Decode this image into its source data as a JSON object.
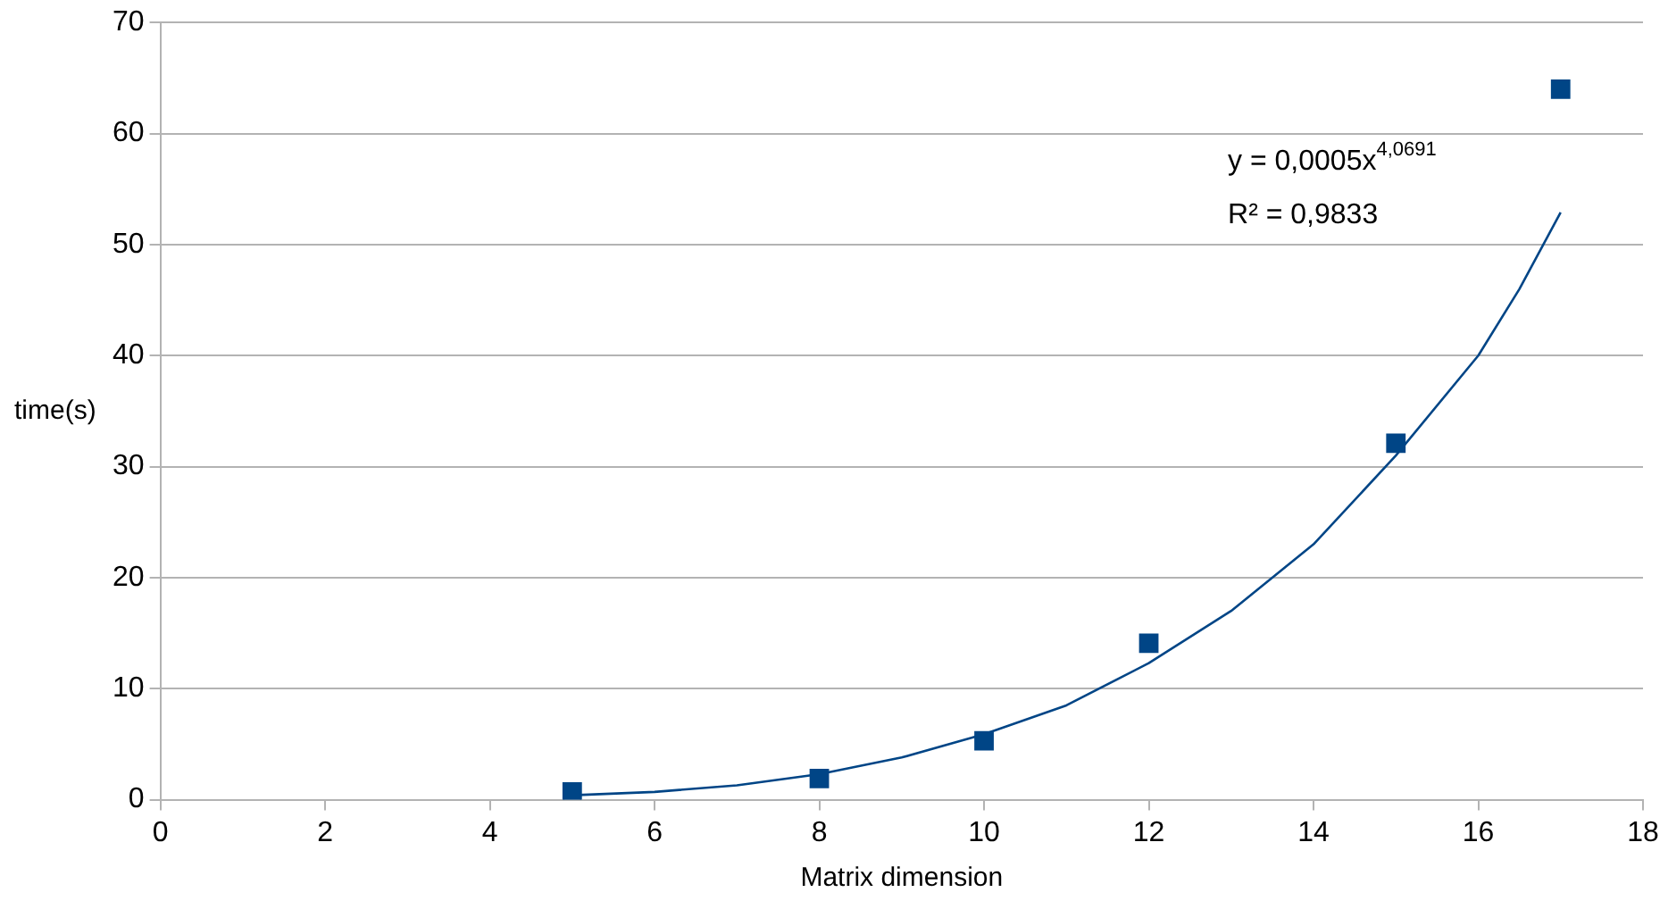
{
  "chart_data": {
    "type": "scatter",
    "xlabel": "Matrix dimension",
    "ylabel": "time(s)",
    "xlim": [
      0,
      18
    ],
    "xticks": [
      0,
      2,
      4,
      6,
      8,
      10,
      12,
      14,
      16,
      18
    ],
    "ylim": [
      0,
      70
    ],
    "yticks": [
      0,
      10,
      20,
      30,
      40,
      50,
      60,
      70
    ],
    "grid": "y",
    "legend": false,
    "marker": "square",
    "annotations": [
      "y = 0,0005x$^{4,0691}$",
      "R² = 0,9833"
    ],
    "series": [
      {
        "color": "#004586",
        "x": [
          5,
          8,
          10,
          12,
          15,
          17
        ],
        "values": [
          0.7,
          1.9,
          5.3,
          14.1,
          32.1,
          64
        ]
      },
      {
        "type": "line",
        "color": "#004586",
        "marker": "none",
        "x": [
          5,
          6,
          7,
          8,
          9,
          10,
          11,
          12,
          13,
          14,
          15,
          16,
          16.5,
          17
        ],
        "values": [
          0.4,
          0.7,
          1.3,
          2.3,
          3.8,
          5.9,
          8.5,
          12.3,
          17,
          23,
          31,
          40,
          46,
          52.9
        ]
      }
    ]
  }
}
